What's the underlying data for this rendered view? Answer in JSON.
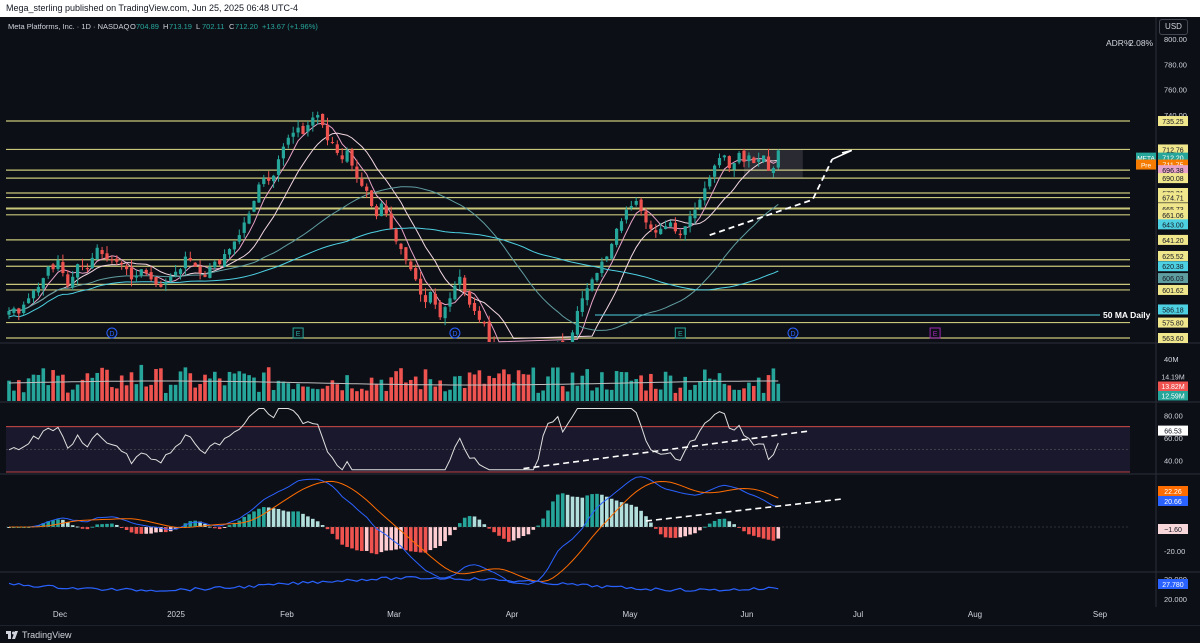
{
  "header": {
    "published": "Mega_sterling published on TradingView.com, Jun 25, 2025 06:48 UTC-4",
    "legend_name": "Meta Platforms, Inc. · 1D · NASDAQ",
    "ohlc": [
      {
        "k": "O",
        "v": "704.89"
      },
      {
        "k": "H",
        "v": "713.19"
      },
      {
        "k": "L",
        "v": "702.11"
      },
      {
        "k": "C",
        "v": "712.20"
      },
      {
        "k": "",
        "v": "+13.67 (+1.96%)"
      }
    ]
  },
  "currency_button": "USD",
  "adr_label": "ADR%",
  "adr_value": "2.08%",
  "ma_label": "50 MA Daily",
  "footer": {
    "brand": "TradingView"
  },
  "colors": {
    "background": "#0d0f17",
    "up": "#26a69a",
    "down": "#ef5350",
    "level_line": "#c9c77a",
    "ma_light": "#f2d7e0",
    "ma_pink": "#e7a3c7",
    "ma_teal": "#5f9ea0",
    "ma_cyan": "#4dd0e1",
    "vol_ma": "#bfbfbf",
    "rsi_band": "#7e57c2",
    "macd_line": "#2962ff",
    "signal_line": "#ff6d00",
    "adx_line": "#2962ff"
  },
  "chart_data": {
    "type": "candlestick",
    "symbol": "META",
    "x_ticks": [
      "Dec",
      "2025",
      "Feb",
      "Mar",
      "Apr",
      "May",
      "Jun",
      "Jul",
      "Aug",
      "Sep"
    ],
    "price_axis": [
      "800.00",
      "780.00",
      "760.00",
      "740.00"
    ],
    "ylim": [
      563.6,
      812
    ],
    "horizontal_levels": [
      735.25,
      712.76,
      696.38,
      690.08,
      678.31,
      674.71,
      666.34,
      665.73,
      661.06,
      641.2,
      625.52,
      620.38,
      606.03,
      601.62,
      575.8,
      563.6
    ],
    "price_labels": [
      {
        "text": "735.25",
        "price": 735.25,
        "bg": "#f0e68c",
        "fg": "#131722"
      },
      {
        "text": "712.76",
        "price": 712.76,
        "bg": "#f0e68c",
        "fg": "#131722"
      },
      {
        "text": "712.20",
        "price": 706.3,
        "bg": "#26a69a",
        "fg": "#ffffff",
        "tag": "META",
        "tag_bg": "#26a69a"
      },
      {
        "text": "711.75",
        "price": 700.8,
        "bg": "#f57c00",
        "fg": "#ffffff",
        "tag": "Pre",
        "tag_bg": "#f57c00"
      },
      {
        "text": "696.38",
        "price": 696.38,
        "bg": "#e7a3c7",
        "fg": "#131722"
      },
      {
        "text": "690.08",
        "price": 690.08,
        "bg": "#f0e68c",
        "fg": "#131722"
      },
      {
        "text": "678.31",
        "price": 678.31,
        "bg": "#f0e68c",
        "fg": "#131722"
      },
      {
        "text": "674.71",
        "price": 674.71,
        "bg": "#f0e68c",
        "fg": "#131722"
      },
      {
        "text": "666.34",
        "price": 666.34,
        "bg": "#f0e68c",
        "fg": "#131722"
      },
      {
        "text": "665.73",
        "price": 665.73,
        "bg": "#f0e68c",
        "fg": "#131722"
      },
      {
        "text": "661.06",
        "price": 661.06,
        "bg": "#f0e68c",
        "fg": "#131722"
      },
      {
        "text": "643.00",
        "price": 653.5,
        "bg": "#4dd0e1",
        "fg": "#131722"
      },
      {
        "text": "641.20",
        "price": 641.2,
        "bg": "#f0e68c",
        "fg": "#131722"
      },
      {
        "text": "625.52",
        "price": 628.5,
        "bg": "#f0e68c",
        "fg": "#131722"
      },
      {
        "text": "620.38",
        "price": 620.38,
        "bg": "#4dd0e1",
        "fg": "#131722"
      },
      {
        "text": "606.03",
        "price": 611.0,
        "bg": "#5f9ea0",
        "fg": "#131722"
      },
      {
        "text": "601.62",
        "price": 601.62,
        "bg": "#f0e68c",
        "fg": "#131722"
      },
      {
        "text": "586.18",
        "price": 586.18,
        "bg": "#4dd0e1",
        "fg": "#131722"
      },
      {
        "text": "575.80",
        "price": 575.8,
        "bg": "#f0e68c",
        "fg": "#131722"
      },
      {
        "text": "563.60",
        "price": 563.6,
        "bg": "#f0e68c",
        "fg": "#131722"
      }
    ],
    "event_markers": [
      {
        "type": "D",
        "date_index": 21,
        "color": "#2962ff"
      },
      {
        "type": "E",
        "date_index": 59,
        "color": "#26a69a"
      },
      {
        "type": "D",
        "date_index": 91,
        "color": "#2962ff"
      },
      {
        "type": "E",
        "date_index": 137,
        "color": "#26a69a"
      },
      {
        "type": "D",
        "date_index": 160,
        "color": "#2962ff"
      },
      {
        "type": "E",
        "date_index": 189,
        "color": "#9c27b0"
      }
    ],
    "closes": [
      585,
      587,
      583,
      590,
      595,
      601,
      604,
      611,
      620,
      618,
      625,
      615,
      605,
      612,
      622,
      620,
      618,
      627,
      635,
      630,
      626,
      625,
      624,
      622,
      618,
      610,
      613,
      618,
      615,
      610,
      606,
      604,
      608,
      612,
      616,
      618,
      628,
      625,
      620,
      615,
      612,
      620,
      624,
      622,
      630,
      634,
      640,
      645,
      655,
      662,
      672,
      685,
      690,
      688,
      692,
      705,
      715,
      722,
      726,
      730,
      725,
      732,
      738,
      740,
      732,
      720,
      718,
      710,
      705,
      712,
      700,
      690,
      684,
      680,
      668,
      660,
      670,
      662,
      650,
      640,
      634,
      625,
      618,
      610,
      598,
      592,
      600,
      590,
      580,
      588,
      595,
      605,
      612,
      600,
      590,
      585,
      578,
      575,
      560,
      550,
      540,
      528,
      515,
      525,
      520,
      510,
      495,
      505,
      520,
      540,
      548,
      552,
      560,
      545,
      555,
      568,
      585,
      595,
      603,
      610,
      615,
      624,
      628,
      638,
      650,
      656,
      665,
      668,
      672,
      664,
      655,
      650,
      647,
      650,
      652,
      655,
      648,
      645,
      652,
      660,
      665,
      673,
      682,
      690,
      700,
      706,
      708,
      698,
      702,
      710,
      703,
      708,
      702,
      705,
      708,
      696,
      698,
      712
    ],
    "volume_axis": [
      "40M"
    ],
    "volume_labels": [
      {
        "text": "14.19M",
        "bg": "#0d0f17",
        "fg": "#d1d4dc"
      },
      {
        "text": "13.82M",
        "bg": "#ef5350",
        "fg": "#ffffff"
      },
      {
        "text": "12.59M",
        "bg": "#26a69a",
        "fg": "#ffffff"
      }
    ],
    "rsi_axis": [
      "80.00",
      "60.00",
      "40.00"
    ],
    "rsi_value": "66.53",
    "rsi_bands": [
      70,
      30
    ],
    "macd_axis": [
      "-20.00"
    ],
    "macd_labels": [
      {
        "text": "22.26",
        "bg": "#ff6d00",
        "fg": "#ffffff"
      },
      {
        "text": "20.66",
        "bg": "#2962ff",
        "fg": "#ffffff"
      },
      {
        "text": "−1.60",
        "bg": "#f8d7da",
        "fg": "#131722"
      }
    ],
    "adx_axis": [
      "30.000",
      "20.000"
    ],
    "adx_value": "27.780"
  }
}
